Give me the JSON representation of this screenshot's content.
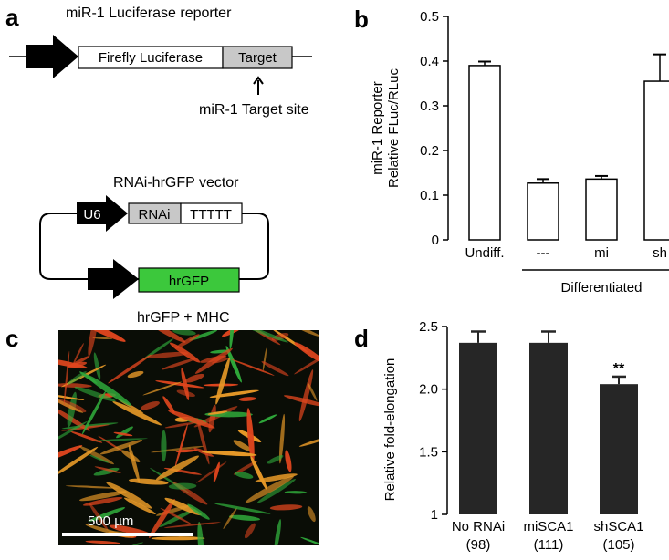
{
  "panels": {
    "a": {
      "letter": "a",
      "reporter_title": "miR-1 Luciferase reporter",
      "luciferase_label": "Firefly Luciferase",
      "target_label": "Target",
      "target_site_label": "miR-1 Target site",
      "vector_title": "RNAi-hrGFP vector",
      "u6_label": "U6",
      "rnai_label": "RNAi",
      "tttt_label": "TTTTT",
      "hrgfp_label": "hrGFP",
      "colors": {
        "gfp_box": "#3cc83c",
        "target_box": "#c8c8c8",
        "rnai_box": "#c8c8c8",
        "promoter": "#000000"
      }
    },
    "c": {
      "letter": "c",
      "title": "hrGFP + MHC",
      "scale_bar_label": "500 µm",
      "colors": {
        "red": "#e0461e",
        "orange": "#e89a28",
        "green": "#2fa83a",
        "background": "#0a0d06"
      }
    }
  },
  "chart_data": [
    {
      "panel": "b",
      "type": "bar",
      "ylabel_line1": "miR-1 Reporter",
      "ylabel_line2": "Relative FLuc/RLuc",
      "categories": [
        "Undiff.",
        "---",
        "mi",
        "sh"
      ],
      "values": [
        0.39,
        0.127,
        0.136,
        0.355
      ],
      "errors": [
        0.009,
        0.009,
        0.007,
        0.06
      ],
      "ylim": [
        0,
        0.5
      ],
      "yticks": [
        "0",
        "0.1",
        "0.2",
        "0.3",
        "0.4",
        "0.5"
      ],
      "group_label": "Differentiated",
      "bar_color": "#ffffff"
    },
    {
      "panel": "d",
      "type": "bar",
      "ylabel": "Relative fold-elongation",
      "categories": [
        "No RNAi",
        "miSCA1",
        "shSCA1"
      ],
      "counts": [
        "(98)",
        "(111)",
        "(105)"
      ],
      "values": [
        2.37,
        2.37,
        2.04
      ],
      "errors": [
        0.09,
        0.09,
        0.06
      ],
      "ylim": [
        1,
        2.5
      ],
      "yticks": [
        "1",
        "1.5",
        "2.0",
        "2.5"
      ],
      "annotation": "**",
      "bar_color": "#262626"
    }
  ]
}
